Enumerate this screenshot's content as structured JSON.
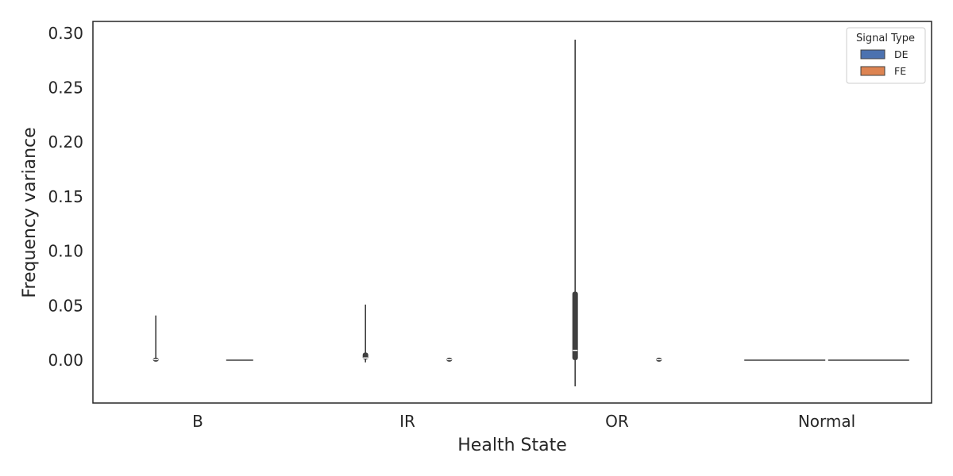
{
  "chart_data": {
    "type": "violin",
    "title": "",
    "xlabel": "Health State",
    "ylabel": "Frequency variance",
    "categories": [
      "B",
      "IR",
      "OR",
      "Normal"
    ],
    "ylim": [
      -0.04,
      0.31
    ],
    "yticks": [
      0.0,
      0.05,
      0.1,
      0.15,
      0.2,
      0.25,
      0.3
    ],
    "ytick_labels": [
      "0.00",
      "0.05",
      "0.10",
      "0.15",
      "0.20",
      "0.25",
      "0.30"
    ],
    "grid": false,
    "legend": {
      "title": "Signal Type",
      "placement": "top-right",
      "entries": [
        {
          "label": "DE",
          "color": "#4c72b0"
        },
        {
          "label": "FE",
          "color": "#dd8452"
        }
      ]
    },
    "series": [
      {
        "name": "DE",
        "color": "#4c72b0",
        "values": [
          {
            "category": "B",
            "min": 0.0,
            "q1": 0.0,
            "median": 0.0005,
            "q3": 0.001,
            "max": 0.041
          },
          {
            "category": "IR",
            "min": -0.002,
            "q1": 0.0005,
            "median": 0.002,
            "q3": 0.007,
            "max": 0.051
          },
          {
            "category": "OR",
            "min": -0.024,
            "q1": 0.0,
            "median": 0.009,
            "q3": 0.063,
            "max": 0.294
          },
          {
            "category": "Normal",
            "min": 0.0,
            "q1": 0.0,
            "median": 0.0,
            "q3": 0.0,
            "max": 0.0
          }
        ]
      },
      {
        "name": "FE",
        "color": "#dd8452",
        "values": [
          {
            "category": "B",
            "min": 0.0,
            "q1": 0.0,
            "median": 0.0,
            "q3": 0.0,
            "max": 0.0
          },
          {
            "category": "IR",
            "min": 0.0,
            "q1": 0.0,
            "median": 0.0005,
            "q3": 0.001,
            "max": 0.002
          },
          {
            "category": "OR",
            "min": 0.0,
            "q1": 0.0,
            "median": 0.0005,
            "q3": 0.001,
            "max": 0.002
          },
          {
            "category": "Normal",
            "min": 0.0,
            "q1": 0.0,
            "median": 0.0,
            "q3": 0.0,
            "max": 0.0
          }
        ]
      }
    ]
  }
}
